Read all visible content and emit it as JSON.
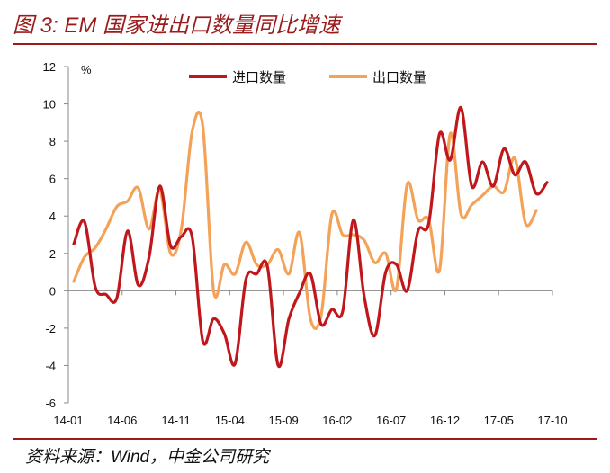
{
  "header": {
    "title": "图 3: EM 国家进出口数量同比增速"
  },
  "footer": {
    "source": "资料来源：Wind，中金公司研究"
  },
  "chart_data": {
    "type": "line",
    "title": "图 3: EM 国家进出口数量同比增速",
    "ylabel": "%",
    "xlabel": "",
    "ylim": [
      -6,
      12
    ],
    "yticks": [
      -6,
      -4,
      -2,
      0,
      2,
      4,
      6,
      8,
      10,
      12
    ],
    "xticks": [
      "14-01",
      "14-06",
      "14-11",
      "15-04",
      "15-09",
      "16-02",
      "16-07",
      "16-12",
      "17-05",
      "17-10"
    ],
    "x_index_of_ticks": [
      0,
      5,
      10,
      15,
      20,
      25,
      30,
      35,
      40,
      45
    ],
    "legend_position": "top",
    "series": [
      {
        "name": "进口数量",
        "color": "#c0171d",
        "values": [
          2.5,
          3.7,
          0.2,
          -0.2,
          -0.4,
          3.2,
          0.3,
          1.8,
          5.6,
          2.4,
          2.9,
          2.9,
          -2.7,
          -1.5,
          -2.3,
          -3.9,
          0.6,
          0.9,
          1.3,
          -4.0,
          -1.5,
          -0.1,
          0.9,
          -1.8,
          -1.0,
          -1.1,
          3.8,
          -0.3,
          -2.4,
          1.0,
          1.4,
          0.0,
          3.2,
          3.6,
          8.4,
          7.0,
          9.8,
          5.6,
          6.9,
          5.6,
          7.6,
          6.2,
          6.9,
          5.2,
          5.8
        ]
      },
      {
        "name": "出口数量",
        "color": "#f4a258",
        "values": [
          0.5,
          1.8,
          2.3,
          3.3,
          4.5,
          4.8,
          5.5,
          3.3,
          5.4,
          2.0,
          3.3,
          8.5,
          8.8,
          0.0,
          1.4,
          0.9,
          2.6,
          1.4,
          1.4,
          2.2,
          0.9,
          3.1,
          -1.5,
          -1.3,
          4.1,
          3.0,
          3.0,
          2.7,
          1.5,
          2.0,
          0.1,
          5.7,
          3.8,
          3.8,
          1.1,
          8.4,
          4.1,
          4.6,
          5.1,
          5.6,
          5.3,
          7.1,
          3.6,
          4.3
        ]
      }
    ]
  }
}
